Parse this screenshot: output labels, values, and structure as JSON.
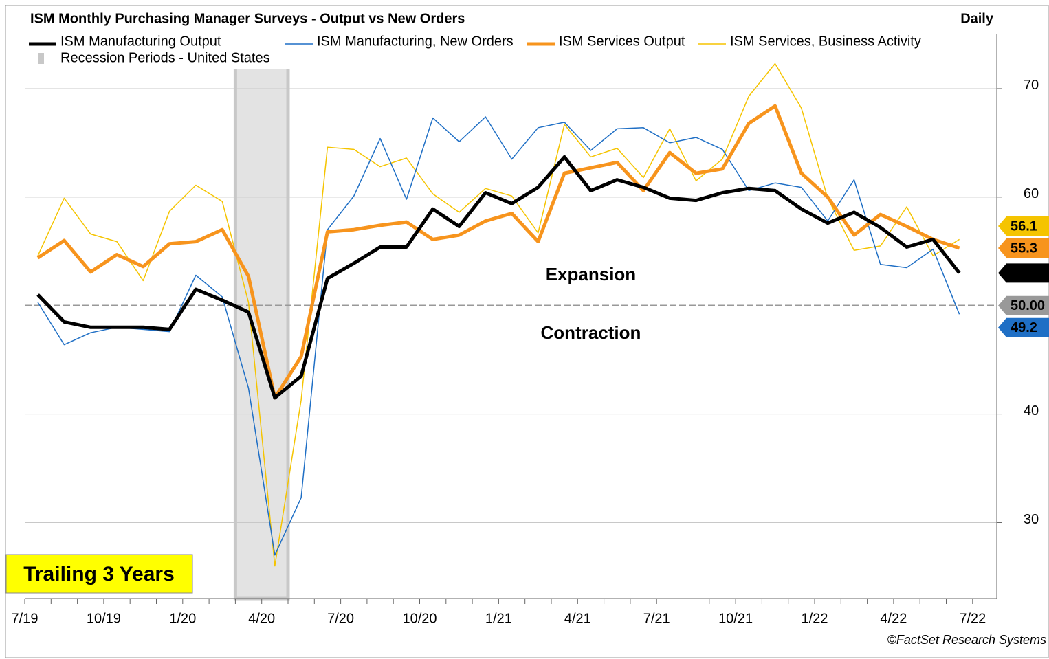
{
  "chart_data": {
    "type": "line",
    "title": "ISM Monthly Purchasing Manager Surveys - Output vs New Orders",
    "frequency": "Daily",
    "categories": [
      "7/19",
      null,
      null,
      "10/19",
      null,
      null,
      "1/20",
      null,
      null,
      "4/20",
      null,
      null,
      "7/20",
      null,
      null,
      "10/20",
      null,
      null,
      "1/21",
      null,
      null,
      "4/21",
      null,
      null,
      "7/21",
      null,
      null,
      "10/21",
      null,
      null,
      "1/22",
      null,
      null,
      "4/22",
      null,
      null,
      "7/22"
    ],
    "series": [
      {
        "name": "ISM Manufacturing Output",
        "color": "#000000",
        "line_width": 5,
        "end_label": "53.0",
        "values": [
          51.0,
          48.5,
          48.0,
          48.0,
          48.0,
          47.8,
          51.5,
          50.5,
          49.4,
          41.5,
          43.5,
          52.5,
          53.9,
          55.4,
          55.4,
          58.9,
          57.3,
          60.4,
          59.4,
          60.9,
          63.7,
          60.6,
          61.6,
          60.9,
          59.9,
          59.7,
          60.4,
          60.8,
          60.6,
          58.9,
          57.6,
          58.6,
          57.2,
          55.4,
          56.1,
          53.0,
          null
        ]
      },
      {
        "name": "ISM Manufacturing, New Orders",
        "color": "#1f6fc5",
        "line_width": 1.5,
        "end_label": "49.2",
        "values": [
          50.3,
          46.4,
          47.5,
          48.0,
          47.8,
          47.6,
          52.8,
          50.8,
          42.4,
          27.0,
          32.3,
          57.0,
          60.1,
          65.4,
          59.8,
          67.3,
          65.1,
          67.4,
          63.5,
          66.4,
          66.9,
          64.3,
          66.3,
          66.4,
          65.0,
          65.5,
          64.4,
          60.6,
          61.3,
          60.9,
          57.8,
          61.6,
          53.8,
          53.5,
          55.2,
          49.2,
          null
        ]
      },
      {
        "name": "ISM Services Output",
        "color": "#f7941d",
        "line_width": 5,
        "end_label": "55.3",
        "values": [
          54.4,
          56.0,
          53.1,
          54.7,
          53.6,
          55.7,
          55.9,
          57.0,
          52.7,
          41.5,
          45.3,
          56.8,
          57.0,
          57.4,
          57.7,
          56.1,
          56.5,
          57.8,
          58.5,
          55.9,
          62.2,
          62.7,
          63.2,
          60.6,
          64.1,
          62.2,
          62.6,
          66.8,
          68.4,
          62.2,
          60.0,
          56.5,
          58.4,
          57.3,
          56.1,
          55.3,
          null
        ]
      },
      {
        "name": "ISM Services, Business Activity",
        "color": "#f5c400",
        "line_width": 1.5,
        "end_label": "56.1",
        "values": [
          54.6,
          59.9,
          56.6,
          55.9,
          52.3,
          58.7,
          61.1,
          59.6,
          50.3,
          26.0,
          41.3,
          64.6,
          64.4,
          62.8,
          63.6,
          60.3,
          58.6,
          60.8,
          60.1,
          56.7,
          66.7,
          63.7,
          64.5,
          61.8,
          66.3,
          61.5,
          63.5,
          69.3,
          72.3,
          68.2,
          59.9,
          55.1,
          55.5,
          59.1,
          54.6,
          56.1,
          null
        ]
      }
    ],
    "recession": {
      "name": "Recession Periods - United States",
      "start": "3/20",
      "end": "4/20",
      "color": "#c8c8c8"
    },
    "reference_line": {
      "value": 50,
      "label": "50.00",
      "color": "#999999"
    },
    "annotations": [
      {
        "text": "Expansion",
        "color": "#1a9a1a"
      },
      {
        "text": "Contraction",
        "color": "#e00000"
      }
    ],
    "badge": "Trailing 3 Years",
    "source": "©FactSet Research Systems",
    "ylim": [
      23,
      75
    ],
    "yticks": [
      30,
      40,
      60,
      70
    ],
    "grid": true
  }
}
